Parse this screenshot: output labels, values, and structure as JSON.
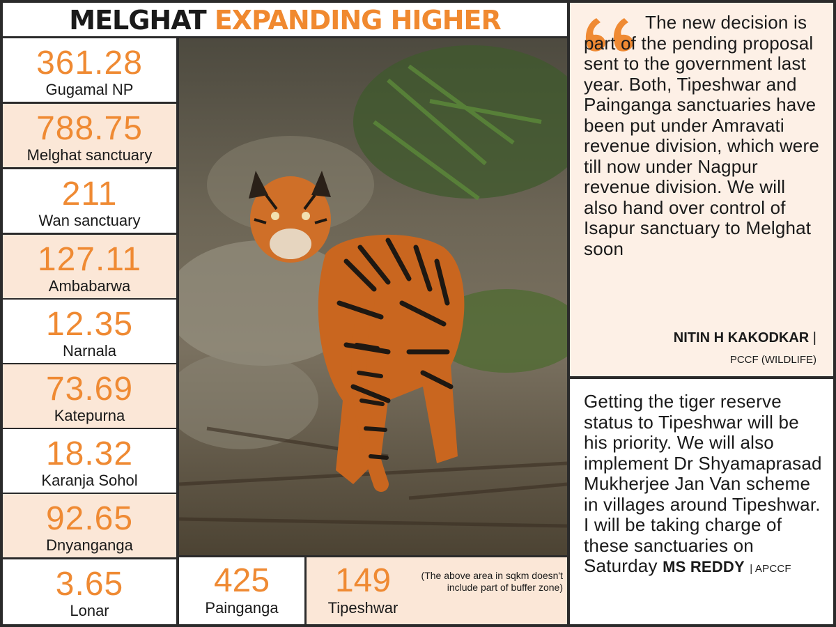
{
  "title": {
    "part1": "MELGHAT",
    "part2": "EXPANDING HIGHER"
  },
  "stats": [
    {
      "value": "361.28",
      "label": "Gugamal NP"
    },
    {
      "value": "788.75",
      "label": "Melghat sanctuary"
    },
    {
      "value": "211",
      "label": "Wan sanctuary"
    },
    {
      "value": "127.11",
      "label": "Ambabarwa"
    },
    {
      "value": "12.35",
      "label": "Narnala"
    },
    {
      "value": "73.69",
      "label": "Katepurna"
    },
    {
      "value": "18.32",
      "label": "Karanja Sohol"
    },
    {
      "value": "92.65",
      "label": "Dnyanganga"
    },
    {
      "value": "3.65",
      "label": "Lonar"
    }
  ],
  "bottom_stats": [
    {
      "value": "425",
      "label": "Painganga"
    },
    {
      "value": "149",
      "label": "Tipeshwar"
    }
  ],
  "note": "(The above area in sqkm doesn't include part of buffer zone)",
  "quote1": {
    "text": "The new decision is part of the pending proposal sent to the government last year. Both, Tipeshwar and Painganga sanctuaries have been put under Amravati revenue division, which were till now under Nagpur revenue division. We will also hand over control of Isapur sanctuary to Melghat soon",
    "author": "NITIN H KAKODKAR",
    "separator": "|",
    "role": "PCCF (WILDLIFE)"
  },
  "quote2": {
    "text": "Getting the tiger reserve status to Tipeshwar will be his priority. We will also implement Dr Shyamaprasad Mukherjee Jan Van scheme in villages around Tipeshwar. I will be taking charge of these sanctuaries on Saturday",
    "author": "MS REDDY",
    "role": "| APCCF"
  },
  "colors": {
    "accent": "#ef8a33",
    "peach": "#fbe7d7",
    "text": "#1a1a1a"
  },
  "icons": {
    "quote": "quote-mark-icon"
  }
}
